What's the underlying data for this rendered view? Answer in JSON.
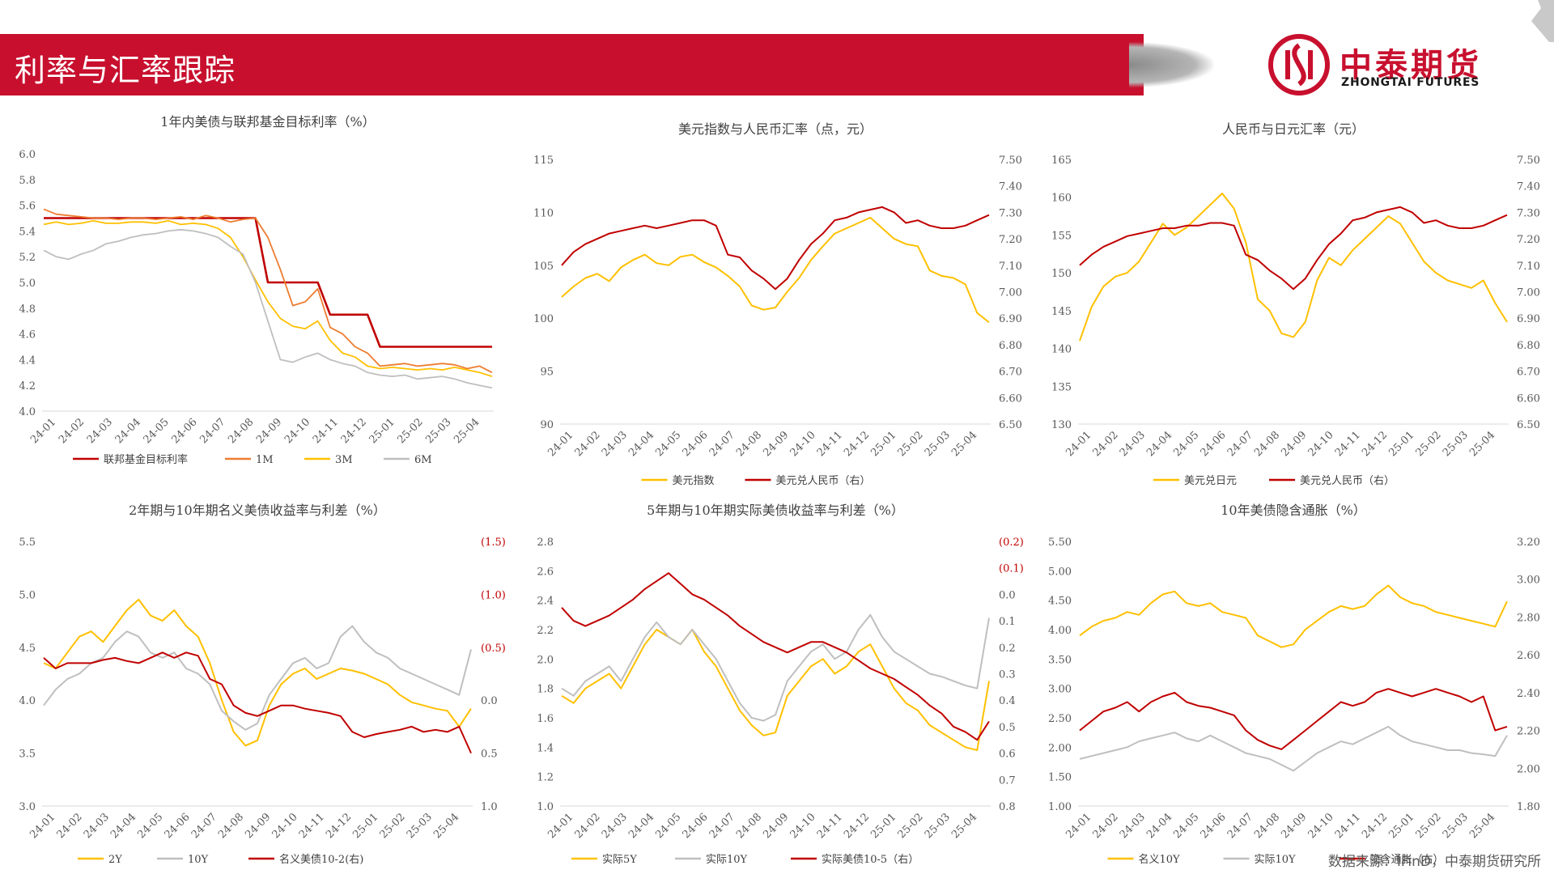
{
  "header": {
    "title": "利率与汇率跟踪",
    "logo_cn": "中泰期货",
    "logo_en": "ZHONGTAI FUTURES"
  },
  "footer": {
    "source": "数据来源：IFinD，中泰期货研究所"
  },
  "months": [
    "24-01",
    "24-02",
    "24-03",
    "24-04",
    "24-05",
    "24-06",
    "24-07",
    "24-08",
    "24-09",
    "24-10",
    "24-11",
    "24-12",
    "25-01",
    "25-02",
    "25-03",
    "25-04"
  ],
  "chart_data": [
    {
      "type": "line",
      "title": "1年内美债与联邦基金目标利率（%）",
      "y_left": {
        "min": 4.0,
        "max": 6.0,
        "ticks": [
          "6.0",
          "5.8",
          "5.6",
          "5.4",
          "5.2",
          "5.0",
          "4.8",
          "4.6",
          "4.4",
          "4.2",
          "4.0"
        ]
      },
      "series": [
        {
          "name": "联邦基金目标利率",
          "color": "#c00000",
          "axis": "left",
          "width": 2.6,
          "values": [
            5.5,
            5.5,
            5.5,
            5.5,
            5.5,
            5.5,
            5.5,
            5.5,
            5.5,
            5.5,
            5.5,
            5.5,
            5.5,
            5.5,
            5.5,
            5.5,
            5.5,
            5.5,
            5.0,
            5.0,
            5.0,
            5.0,
            5.0,
            4.75,
            4.75,
            4.75,
            4.75,
            4.5,
            4.5,
            4.5,
            4.5,
            4.5,
            4.5,
            4.5,
            4.5,
            4.5,
            4.5
          ]
        },
        {
          "name": "1M",
          "color": "#ed7d31",
          "axis": "left",
          "width": 1.8,
          "values": [
            5.57,
            5.53,
            5.52,
            5.51,
            5.5,
            5.5,
            5.49,
            5.5,
            5.5,
            5.49,
            5.5,
            5.51,
            5.49,
            5.52,
            5.5,
            5.47,
            5.49,
            5.5,
            5.35,
            5.1,
            4.82,
            4.85,
            4.95,
            4.65,
            4.6,
            4.5,
            4.45,
            4.35,
            4.36,
            4.37,
            4.35,
            4.36,
            4.37,
            4.36,
            4.33,
            4.35,
            4.3
          ]
        },
        {
          "name": "3M",
          "color": "#ffc000",
          "axis": "left",
          "width": 1.8,
          "values": [
            5.45,
            5.47,
            5.45,
            5.46,
            5.48,
            5.46,
            5.46,
            5.47,
            5.47,
            5.46,
            5.48,
            5.45,
            5.46,
            5.45,
            5.42,
            5.35,
            5.2,
            5.02,
            4.85,
            4.72,
            4.66,
            4.64,
            4.7,
            4.55,
            4.45,
            4.42,
            4.35,
            4.33,
            4.34,
            4.33,
            4.32,
            4.33,
            4.32,
            4.34,
            4.32,
            4.3,
            4.27
          ]
        },
        {
          "name": "6M",
          "color": "#bfbfbf",
          "axis": "left",
          "width": 1.8,
          "values": [
            5.25,
            5.2,
            5.18,
            5.22,
            5.25,
            5.3,
            5.32,
            5.35,
            5.37,
            5.38,
            5.4,
            5.41,
            5.4,
            5.38,
            5.35,
            5.28,
            5.22,
            5.0,
            4.7,
            4.4,
            4.38,
            4.42,
            4.45,
            4.4,
            4.37,
            4.35,
            4.3,
            4.28,
            4.27,
            4.28,
            4.25,
            4.26,
            4.27,
            4.25,
            4.22,
            4.2,
            4.18
          ]
        }
      ]
    },
    {
      "type": "line",
      "title": "美元指数与人民币汇率（点，元）",
      "y_left": {
        "min": 90,
        "max": 115,
        "ticks": [
          "115",
          "110",
          "105",
          "100",
          "95",
          "90"
        ]
      },
      "y_right": {
        "min": 6.5,
        "max": 7.5,
        "ticks": [
          "7.50",
          "7.40",
          "7.30",
          "7.20",
          "7.10",
          "7.00",
          "6.90",
          "6.80",
          "6.70",
          "6.60",
          "6.50"
        ]
      },
      "series": [
        {
          "name": "美元指数",
          "color": "#ffc000",
          "axis": "left",
          "width": 2,
          "values": [
            102.0,
            103.0,
            103.8,
            104.2,
            103.5,
            104.8,
            105.5,
            106.0,
            105.2,
            105.0,
            105.8,
            106.0,
            105.3,
            104.8,
            104.0,
            103.0,
            101.2,
            100.8,
            101.0,
            102.5,
            103.8,
            105.5,
            106.8,
            108.0,
            108.5,
            109.0,
            109.5,
            108.5,
            107.5,
            107.0,
            106.8,
            104.5,
            104.0,
            103.8,
            103.2,
            100.5,
            99.6
          ]
        },
        {
          "name": "美元兑人民币（右）",
          "color": "#c00000",
          "axis": "right",
          "width": 2,
          "values": [
            7.1,
            7.15,
            7.18,
            7.2,
            7.22,
            7.23,
            7.24,
            7.25,
            7.24,
            7.25,
            7.26,
            7.27,
            7.27,
            7.25,
            7.14,
            7.13,
            7.08,
            7.05,
            7.01,
            7.05,
            7.12,
            7.18,
            7.22,
            7.27,
            7.28,
            7.3,
            7.31,
            7.32,
            7.3,
            7.26,
            7.27,
            7.25,
            7.24,
            7.24,
            7.25,
            7.27,
            7.29
          ]
        }
      ]
    },
    {
      "type": "line",
      "title": "人民币与日元汇率（元）",
      "y_left": {
        "min": 130,
        "max": 165,
        "ticks": [
          "165",
          "160",
          "155",
          "150",
          "145",
          "140",
          "135",
          "130"
        ]
      },
      "y_right": {
        "min": 6.5,
        "max": 7.5,
        "ticks": [
          "7.50",
          "7.40",
          "7.30",
          "7.20",
          "7.10",
          "7.00",
          "6.90",
          "6.80",
          "6.70",
          "6.60",
          "6.50"
        ]
      },
      "series": [
        {
          "name": "美元兑日元",
          "color": "#ffc000",
          "axis": "left",
          "width": 2,
          "values": [
            141.0,
            145.5,
            148.2,
            149.5,
            150.0,
            151.5,
            154.0,
            156.5,
            155.0,
            156.0,
            157.5,
            159.0,
            160.5,
            158.5,
            154.0,
            146.5,
            145.0,
            142.0,
            141.5,
            143.5,
            149.0,
            152.0,
            151.0,
            153.0,
            154.5,
            156.0,
            157.5,
            156.5,
            154.0,
            151.5,
            150.0,
            149.0,
            148.5,
            148.0,
            149.0,
            146.0,
            143.5
          ]
        },
        {
          "name": "美元兑人民币（右）",
          "color": "#c00000",
          "axis": "right",
          "width": 2,
          "values": [
            7.1,
            7.14,
            7.17,
            7.19,
            7.21,
            7.22,
            7.23,
            7.24,
            7.24,
            7.25,
            7.25,
            7.26,
            7.26,
            7.25,
            7.14,
            7.12,
            7.08,
            7.05,
            7.01,
            7.05,
            7.12,
            7.18,
            7.22,
            7.27,
            7.28,
            7.3,
            7.31,
            7.32,
            7.3,
            7.26,
            7.27,
            7.25,
            7.24,
            7.24,
            7.25,
            7.27,
            7.29
          ]
        }
      ]
    },
    {
      "type": "line",
      "title": "2年期与10年期名义美债收益率与利差（%）",
      "y_left": {
        "min": 3.0,
        "max": 5.5,
        "ticks": [
          "5.5",
          "5.0",
          "4.5",
          "4.0",
          "3.5",
          "3.0"
        ]
      },
      "y_right": {
        "min": -1.5,
        "max": 1.0,
        "inverted": true,
        "ticks": [
          "(1.5)",
          "(1.0)",
          "(0.5)",
          "0.0",
          "0.5",
          "1.0"
        ]
      },
      "series": [
        {
          "name": "2Y",
          "color": "#ffc000",
          "axis": "left",
          "width": 2,
          "values": [
            4.35,
            4.3,
            4.45,
            4.6,
            4.65,
            4.55,
            4.7,
            4.85,
            4.95,
            4.8,
            4.75,
            4.85,
            4.7,
            4.6,
            4.35,
            4.0,
            3.7,
            3.57,
            3.62,
            3.95,
            4.15,
            4.25,
            4.3,
            4.2,
            4.25,
            4.3,
            4.28,
            4.25,
            4.2,
            4.15,
            4.05,
            3.98,
            3.95,
            3.92,
            3.9,
            3.75,
            3.92
          ]
        },
        {
          "name": "10Y",
          "color": "#bfbfbf",
          "axis": "left",
          "width": 2,
          "values": [
            3.95,
            4.1,
            4.2,
            4.25,
            4.35,
            4.4,
            4.55,
            4.65,
            4.6,
            4.45,
            4.4,
            4.45,
            4.3,
            4.25,
            4.15,
            3.9,
            3.8,
            3.72,
            3.78,
            4.05,
            4.2,
            4.35,
            4.4,
            4.3,
            4.35,
            4.6,
            4.7,
            4.55,
            4.45,
            4.4,
            4.3,
            4.25,
            4.2,
            4.15,
            4.1,
            4.05,
            4.48
          ]
        },
        {
          "name": "名义美债10-2(右)",
          "color": "#c00000",
          "axis": "right",
          "width": 2,
          "values": [
            -0.4,
            -0.3,
            -0.35,
            -0.35,
            -0.35,
            -0.38,
            -0.4,
            -0.37,
            -0.35,
            -0.4,
            -0.45,
            -0.4,
            -0.45,
            -0.42,
            -0.2,
            -0.15,
            0.05,
            0.12,
            0.15,
            0.1,
            0.05,
            0.05,
            0.08,
            0.1,
            0.12,
            0.15,
            0.3,
            0.35,
            0.32,
            0.3,
            0.28,
            0.25,
            0.3,
            0.28,
            0.3,
            0.25,
            0.5
          ]
        }
      ]
    },
    {
      "type": "line",
      "title": "5年期与10年期实际美债收益率与利差（%）",
      "y_left": {
        "min": 1.0,
        "max": 2.8,
        "ticks": [
          "2.8",
          "2.6",
          "2.4",
          "2.2",
          "2.0",
          "1.8",
          "1.6",
          "1.4",
          "1.2",
          "1.0"
        ]
      },
      "y_right": {
        "min": -0.2,
        "max": 0.8,
        "inverted": true,
        "ticks": [
          "(0.2)",
          "(0.1)",
          "0.0",
          "0.1",
          "0.2",
          "0.3",
          "0.4",
          "0.5",
          "0.6",
          "0.7",
          "0.8"
        ]
      },
      "series": [
        {
          "name": "实际5Y",
          "color": "#ffc000",
          "axis": "left",
          "width": 2,
          "values": [
            1.75,
            1.7,
            1.8,
            1.85,
            1.9,
            1.8,
            1.95,
            2.1,
            2.2,
            2.15,
            2.1,
            2.2,
            2.05,
            1.95,
            1.8,
            1.65,
            1.55,
            1.48,
            1.5,
            1.75,
            1.85,
            1.95,
            2.0,
            1.9,
            1.95,
            2.05,
            2.1,
            1.95,
            1.8,
            1.7,
            1.65,
            1.55,
            1.5,
            1.45,
            1.4,
            1.38,
            1.85
          ]
        },
        {
          "name": "实际10Y",
          "color": "#bfbfbf",
          "axis": "left",
          "width": 2,
          "values": [
            1.8,
            1.75,
            1.85,
            1.9,
            1.95,
            1.85,
            2.0,
            2.15,
            2.25,
            2.15,
            2.1,
            2.2,
            2.1,
            2.0,
            1.85,
            1.7,
            1.6,
            1.58,
            1.62,
            1.85,
            1.95,
            2.05,
            2.1,
            2.0,
            2.05,
            2.2,
            2.3,
            2.15,
            2.05,
            2.0,
            1.95,
            1.9,
            1.88,
            1.85,
            1.82,
            1.8,
            2.28
          ]
        },
        {
          "name": "实际美债10-5（右）",
          "color": "#c00000",
          "axis": "right",
          "width": 2,
          "values": [
            0.05,
            0.1,
            0.12,
            0.1,
            0.08,
            0.05,
            0.02,
            -0.02,
            -0.05,
            -0.08,
            -0.04,
            0.0,
            0.02,
            0.05,
            0.08,
            0.12,
            0.15,
            0.18,
            0.2,
            0.22,
            0.2,
            0.18,
            0.18,
            0.2,
            0.22,
            0.25,
            0.28,
            0.3,
            0.32,
            0.35,
            0.38,
            0.42,
            0.45,
            0.5,
            0.52,
            0.55,
            0.48
          ]
        }
      ]
    },
    {
      "type": "line",
      "title": "10年美债隐含通胀（%）",
      "y_left": {
        "min": 1.0,
        "max": 5.5,
        "ticks": [
          "5.50",
          "5.00",
          "4.50",
          "4.00",
          "3.50",
          "3.00",
          "2.50",
          "2.00",
          "1.50",
          "1.00"
        ]
      },
      "y_right": {
        "min": 1.8,
        "max": 3.2,
        "ticks": [
          "3.20",
          "3.00",
          "2.80",
          "2.60",
          "2.40",
          "2.20",
          "2.00",
          "1.80"
        ]
      },
      "series": [
        {
          "name": "名义10Y",
          "color": "#ffc000",
          "axis": "left",
          "width": 2,
          "values": [
            3.9,
            4.05,
            4.15,
            4.2,
            4.3,
            4.25,
            4.45,
            4.6,
            4.65,
            4.45,
            4.4,
            4.45,
            4.3,
            4.25,
            4.2,
            3.9,
            3.8,
            3.7,
            3.75,
            4.0,
            4.15,
            4.3,
            4.4,
            4.35,
            4.4,
            4.6,
            4.75,
            4.55,
            4.45,
            4.4,
            4.3,
            4.25,
            4.2,
            4.15,
            4.1,
            4.05,
            4.48
          ]
        },
        {
          "name": "实际10Y",
          "color": "#bfbfbf",
          "axis": "left",
          "width": 2,
          "values": [
            1.8,
            1.85,
            1.9,
            1.95,
            2.0,
            2.1,
            2.15,
            2.2,
            2.25,
            2.15,
            2.1,
            2.2,
            2.1,
            2.0,
            1.9,
            1.85,
            1.8,
            1.7,
            1.6,
            1.75,
            1.9,
            2.0,
            2.1,
            2.05,
            2.15,
            2.25,
            2.35,
            2.2,
            2.1,
            2.05,
            2.0,
            1.95,
            1.95,
            1.9,
            1.88,
            1.85,
            2.2
          ]
        },
        {
          "name": "隐含通胀（右）",
          "color": "#c00000",
          "axis": "right",
          "width": 2,
          "values": [
            2.2,
            2.25,
            2.3,
            2.32,
            2.35,
            2.3,
            2.35,
            2.38,
            2.4,
            2.35,
            2.33,
            2.32,
            2.3,
            2.28,
            2.2,
            2.15,
            2.12,
            2.1,
            2.15,
            2.2,
            2.25,
            2.3,
            2.35,
            2.33,
            2.35,
            2.4,
            2.42,
            2.4,
            2.38,
            2.4,
            2.42,
            2.4,
            2.38,
            2.35,
            2.38,
            2.2,
            2.22
          ]
        }
      ]
    }
  ]
}
